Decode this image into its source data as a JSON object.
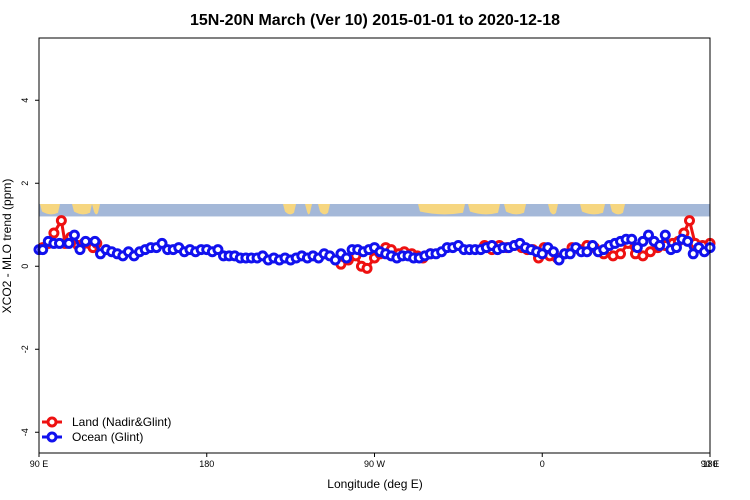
{
  "chart_data": {
    "type": "line",
    "title": "15N-20N March (Ver 10)   2015-01-01 to 2020-12-18",
    "xlabel": "Longitude (deg E)",
    "ylabel": "XCO2 - MLO trend (ppm)",
    "xlim": [
      90,
      450
    ],
    "ylim": [
      -4.5,
      5.5
    ],
    "x_ticks": [
      {
        "value": 90,
        "label": "90 E"
      },
      {
        "value": 180,
        "label": "180"
      },
      {
        "value": 270,
        "label": "90 W"
      },
      {
        "value": 360,
        "label": "0"
      },
      {
        "value": 450,
        "label": "90 E"
      },
      {
        "value": 540,
        "label": "180"
      }
    ],
    "y_ticks": [
      {
        "value": -4,
        "label": "-4"
      },
      {
        "value": -2,
        "label": "-2"
      },
      {
        "value": 0,
        "label": "0"
      },
      {
        "value": 2,
        "label": "2"
      },
      {
        "value": 4,
        "label": "4"
      }
    ],
    "grid": false,
    "legend_position": "bottom-left",
    "map_strip": {
      "y_low": 1.2,
      "y_high": 1.5,
      "ocean_color": "#a4b8d8",
      "land_color": "#f6d680"
    },
    "series": [
      {
        "name": "Land (Nadir&Glint)",
        "color": "#ee1111",
        "x": [
          92,
          95,
          98,
          102,
          104,
          107,
          111,
          114,
          117,
          119,
          121
        ],
        "y": [
          0.45,
          0.55,
          0.8,
          1.1,
          0.55,
          0.7,
          0.5,
          0.55,
          0.55,
          0.45,
          0.55
        ]
      },
      {
        "name": "Land (Nadir&Glint)",
        "color": "#ee1111",
        "x": [
          252,
          256,
          260,
          263,
          266,
          270,
          273,
          276,
          279,
          283,
          286,
          290,
          293,
          296,
          300
        ],
        "y": [
          0.05,
          0.15,
          0.25,
          0.0,
          -0.05,
          0.2,
          0.3,
          0.45,
          0.4,
          0.3,
          0.35,
          0.3,
          0.25,
          0.2,
          0.3
        ]
      },
      {
        "name": "Land (Nadir&Glint)",
        "color": "#ee1111",
        "x": [
          329,
          333,
          337,
          341,
          345,
          349,
          352,
          355,
          358,
          361,
          364,
          368,
          372,
          376,
          380,
          384,
          388,
          393,
          398,
          402,
          406,
          410,
          414,
          418,
          422,
          426,
          430,
          433,
          436,
          439,
          442,
          446,
          450
        ],
        "y": [
          0.5,
          0.4,
          0.5,
          0.45,
          0.5,
          0.45,
          0.4,
          0.4,
          0.2,
          0.45,
          0.25,
          0.2,
          0.3,
          0.45,
          0.4,
          0.5,
          0.45,
          0.3,
          0.25,
          0.3,
          0.55,
          0.3,
          0.25,
          0.35,
          0.45,
          0.5,
          0.55,
          0.6,
          0.8,
          1.1,
          0.55,
          0.5,
          0.55
        ]
      },
      {
        "name": "Ocean (Glint)",
        "color": "#1111ee",
        "x": [
          90,
          92,
          95,
          98,
          101,
          106,
          109,
          112,
          115,
          120,
          123,
          126,
          129,
          132,
          135,
          138,
          141,
          144,
          147,
          150,
          153,
          156,
          159,
          162,
          165,
          168,
          171,
          174,
          177,
          180,
          183,
          186,
          189,
          192,
          195,
          198,
          201,
          204,
          207,
          210,
          213,
          216,
          219,
          222,
          225,
          228,
          231,
          234,
          237,
          240,
          243,
          246,
          249,
          252,
          255,
          258,
          261,
          264,
          267,
          270,
          273,
          276,
          279,
          282,
          285,
          288,
          291,
          294,
          297,
          300,
          303,
          306,
          309,
          312,
          315,
          318,
          321,
          324,
          327,
          330,
          333,
          336,
          339,
          342,
          345,
          348,
          351,
          354,
          357,
          360,
          363,
          366,
          369,
          372,
          375,
          378,
          381,
          384,
          387,
          390,
          393,
          396,
          399,
          402,
          405,
          408,
          411,
          414,
          417,
          420,
          423,
          426,
          429,
          432,
          435,
          438,
          441,
          444,
          447,
          450
        ],
        "y": [
          0.4,
          0.4,
          0.6,
          0.55,
          0.55,
          0.55,
          0.75,
          0.4,
          0.6,
          0.6,
          0.3,
          0.4,
          0.35,
          0.3,
          0.25,
          0.35,
          0.25,
          0.35,
          0.4,
          0.45,
          0.45,
          0.55,
          0.4,
          0.4,
          0.45,
          0.35,
          0.4,
          0.35,
          0.4,
          0.4,
          0.35,
          0.4,
          0.25,
          0.25,
          0.25,
          0.2,
          0.2,
          0.2,
          0.2,
          0.25,
          0.15,
          0.2,
          0.15,
          0.2,
          0.15,
          0.2,
          0.25,
          0.2,
          0.25,
          0.2,
          0.3,
          0.25,
          0.15,
          0.3,
          0.2,
          0.4,
          0.4,
          0.35,
          0.4,
          0.45,
          0.35,
          0.3,
          0.25,
          0.2,
          0.25,
          0.25,
          0.2,
          0.2,
          0.25,
          0.3,
          0.3,
          0.35,
          0.45,
          0.45,
          0.5,
          0.4,
          0.4,
          0.4,
          0.4,
          0.45,
          0.5,
          0.4,
          0.45,
          0.45,
          0.5,
          0.55,
          0.45,
          0.4,
          0.35,
          0.3,
          0.45,
          0.35,
          0.15,
          0.3,
          0.3,
          0.45,
          0.35,
          0.35,
          0.5,
          0.35,
          0.4,
          0.5,
          0.55,
          0.6,
          0.65,
          0.65,
          0.45,
          0.6,
          0.75,
          0.6,
          0.5,
          0.75,
          0.4,
          0.45,
          0.65,
          0.6,
          0.3,
          0.45,
          0.35,
          0.45
        ]
      }
    ],
    "legend": [
      {
        "label": "Land (Nadir&Glint)",
        "color": "#ee1111"
      },
      {
        "label": "Ocean (Glint)",
        "color": "#1111ee"
      }
    ]
  }
}
